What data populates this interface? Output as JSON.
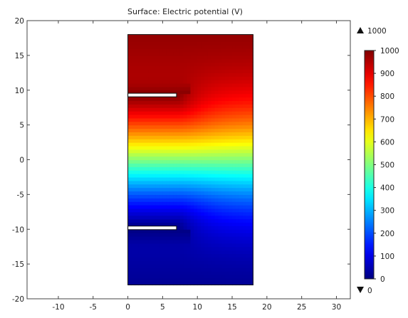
{
  "chart_data": {
    "type": "heatmap",
    "title": "Surface: Electric potential (V)",
    "xlabel": "",
    "ylabel": "",
    "xlim": [
      -14.5,
      32
    ],
    "ylim": [
      -20,
      20
    ],
    "x_ticks": [
      -10,
      -5,
      0,
      5,
      10,
      15,
      20,
      25,
      30
    ],
    "y_ticks": [
      -20,
      -15,
      -10,
      -5,
      0,
      5,
      10,
      15,
      20
    ],
    "domain": {
      "x": [
        0,
        18
      ],
      "y": [
        -18,
        18
      ]
    },
    "electrodes": [
      {
        "name": "top",
        "y": 9.3,
        "x": [
          0,
          7
        ],
        "potential": 1000
      },
      {
        "name": "bottom",
        "y": -9.8,
        "x": [
          0,
          7
        ],
        "potential": 0
      }
    ],
    "colorbar": {
      "min": 0,
      "max": 1000,
      "ticks": [
        0,
        100,
        200,
        300,
        400,
        500,
        600,
        700,
        800,
        900,
        1000
      ],
      "max_marker": "1000",
      "min_marker": "0",
      "colormap": "jet"
    },
    "grid": false
  }
}
